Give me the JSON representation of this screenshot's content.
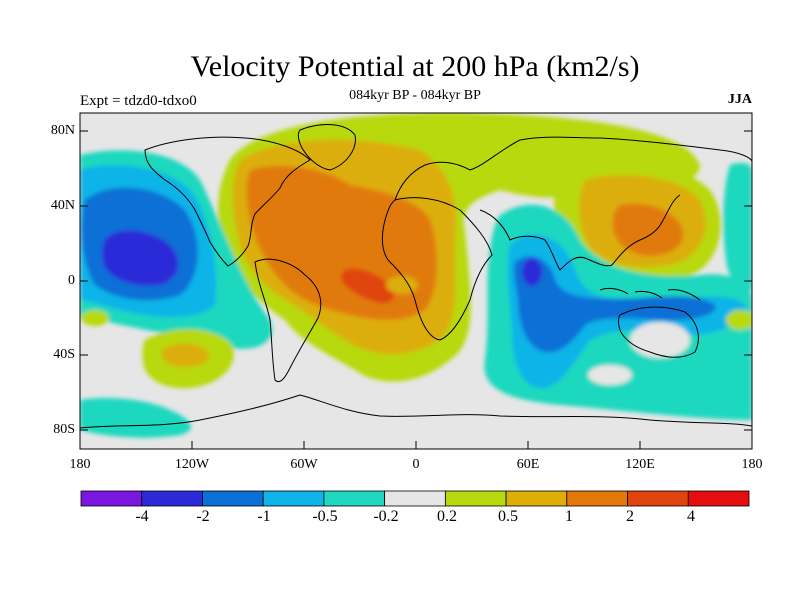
{
  "header": {
    "title": "Velocity Potential at 200 hPa (km2/s)",
    "subtitle": "084kyr BP - 084kyr BP",
    "experiment": "Expt = tdzd0-tdxo0",
    "season": "JJA"
  },
  "axes": {
    "lat_ticks": [
      "80N",
      "40N",
      "0",
      "40S",
      "80S"
    ],
    "lon_ticks": [
      "180",
      "120W",
      "60W",
      "0",
      "60E",
      "120E",
      "180"
    ]
  },
  "colorbar": {
    "labels": [
      "-4",
      "-2",
      "-1",
      "-0.5",
      "-0.2",
      "0.2",
      "0.5",
      "1",
      "2",
      "4"
    ],
    "colors": [
      "#7b16e0",
      "#2b2ad8",
      "#0a6fd6",
      "#10b4e8",
      "#1fd8bf",
      "#e6e6e6",
      "#b7d90f",
      "#dcae07",
      "#e17a0b",
      "#e0440e",
      "#e50e0e"
    ]
  },
  "chart_data": {
    "type": "heatmap",
    "title": "Velocity Potential at 200 hPa (km2/s)",
    "subtitle": "084kyr BP - 084kyr BP",
    "variable": "velocity potential",
    "level": "200 hPa",
    "units": "km2/s",
    "season": "JJA",
    "lon_range": [
      -180,
      180
    ],
    "lat_range": [
      -90,
      90
    ],
    "contour_levels": [
      -4,
      -2,
      -1,
      -0.5,
      -0.2,
      0.2,
      0.5,
      1,
      2,
      4
    ],
    "features": [
      {
        "region": "central North Pacific",
        "lon": -150,
        "lat": 15,
        "range": "-4 to -2"
      },
      {
        "region": "western Indian Ocean",
        "lon": 62,
        "lat": 5,
        "range": "-4 to -2"
      },
      {
        "region": "Indian Ocean / Maritime Continent",
        "lon": 90,
        "lat": -15,
        "range": "-1 to -0.5"
      },
      {
        "region": "tropical Atlantic / Africa",
        "lon": -30,
        "lat": 5,
        "range": "2 to 4"
      },
      {
        "region": "East Asia / Japan",
        "lon": 130,
        "lat": 30,
        "range": "1 to 2"
      },
      {
        "region": "South Pacific",
        "lon": -132,
        "lat": -40,
        "range": "0.5 to 1"
      }
    ]
  }
}
